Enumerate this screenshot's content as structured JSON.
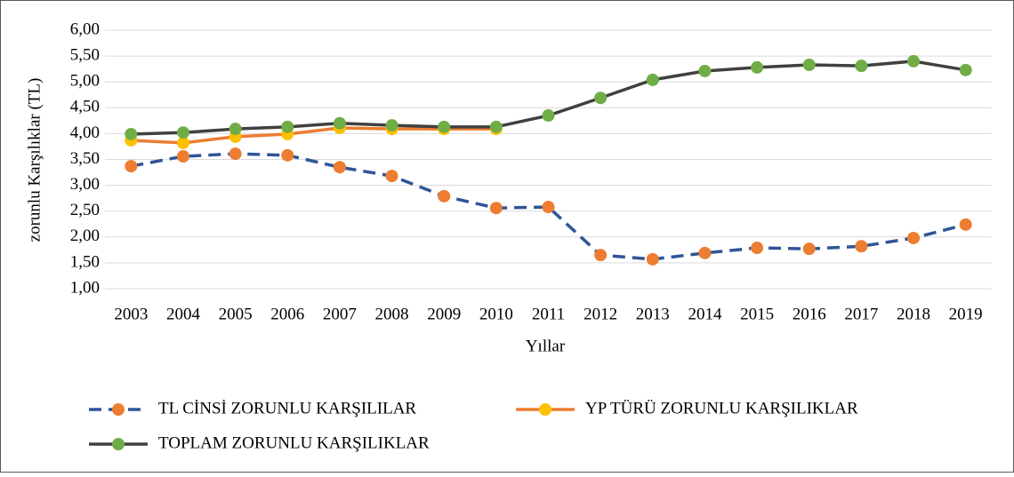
{
  "chart_data": {
    "type": "line",
    "x_label": "Yıllar",
    "y_label": "zorunlu Karşılıklar (TL)",
    "categories": [
      "2003",
      "2004",
      "2005",
      "2006",
      "2007",
      "2008",
      "2009",
      "2010",
      "2011",
      "2012",
      "2013",
      "2014",
      "2015",
      "2016",
      "2017",
      "2018",
      "2019"
    ],
    "series": [
      {
        "name": "TL CİNSİ ZORUNLU KARŞILILAR",
        "color": "#2f5597",
        "marker_color": "#ed7d31",
        "dashed": true,
        "values": [
          3.37,
          3.56,
          3.61,
          3.58,
          3.35,
          3.18,
          2.79,
          2.56,
          2.58,
          1.65,
          1.57,
          1.69,
          1.79,
          1.77,
          1.82,
          1.98,
          2.24
        ]
      },
      {
        "name": "YP TÜRÜ ZORUNLU KARŞILIKLAR",
        "color": "#ed7d31",
        "marker_color": "#ffc000",
        "dashed": false,
        "values": [
          3.87,
          3.82,
          3.94,
          3.99,
          4.11,
          4.09,
          4.09,
          4.09,
          null,
          null,
          null,
          null,
          null,
          null,
          null,
          null,
          null
        ]
      },
      {
        "name": "TOPLAM ZORUNLU KARŞILIKLAR",
        "color": "#404040",
        "marker_color": "#70ad47",
        "dashed": false,
        "values": [
          3.99,
          4.02,
          4.09,
          4.13,
          4.2,
          4.16,
          4.13,
          4.13,
          4.35,
          4.69,
          5.04,
          5.21,
          5.28,
          5.33,
          5.31,
          5.4,
          5.23
        ]
      }
    ],
    "ylim": [
      1,
      6
    ],
    "yticks": [
      {
        "value": 1,
        "label": "1,00"
      },
      {
        "value": 1.5,
        "label": "1,50"
      },
      {
        "value": 2,
        "label": "2,00"
      },
      {
        "value": 2.5,
        "label": "2,50"
      },
      {
        "value": 3,
        "label": "3,00"
      },
      {
        "value": 3.5,
        "label": "3,50"
      },
      {
        "value": 4,
        "label": "4,00"
      },
      {
        "value": 4.5,
        "label": "4,50"
      },
      {
        "value": 5,
        "label": "5,00"
      },
      {
        "value": 5.5,
        "label": "5,50"
      },
      {
        "value": 6,
        "label": "6,00"
      }
    ],
    "grid": true,
    "legend": "bottom"
  }
}
